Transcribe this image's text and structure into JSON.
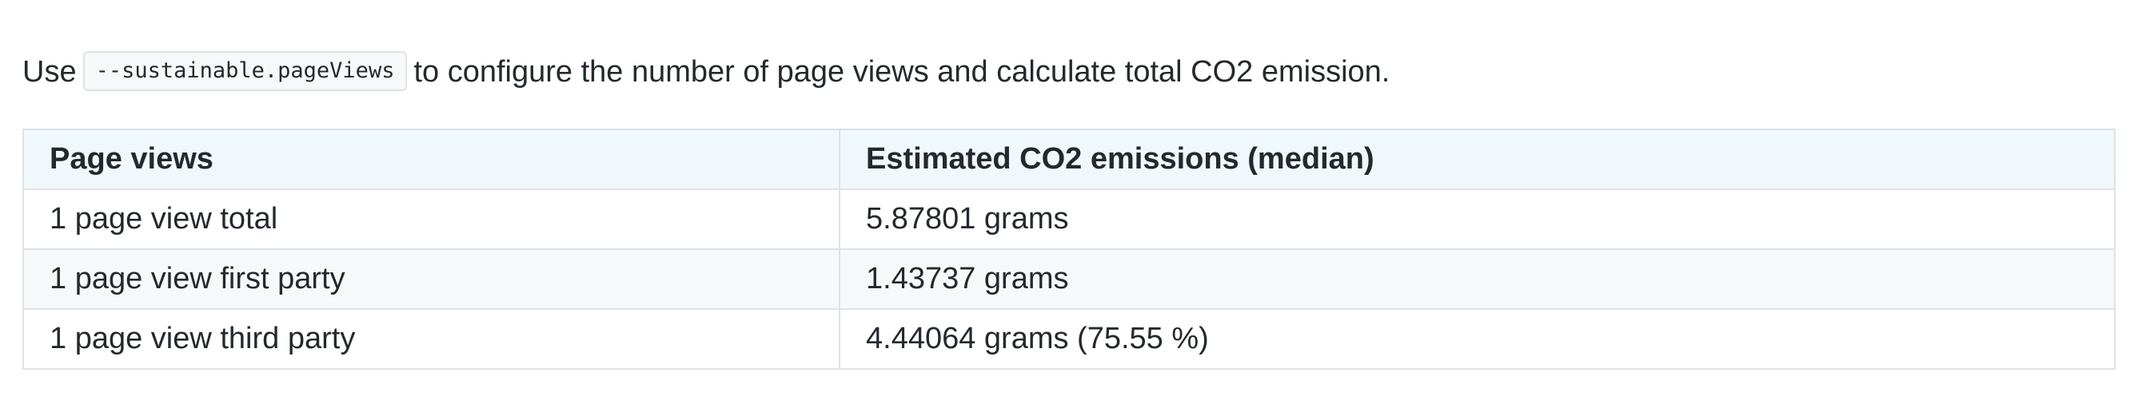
{
  "intro": {
    "before": "Use",
    "code": "--sustainable.pageViews",
    "after": "to configure the number of page views and calculate total CO2 emission."
  },
  "table": {
    "headers": [
      "Page views",
      "Estimated CO2 emissions (median)"
    ],
    "rows": [
      [
        "1 page view total",
        "5.87801 grams"
      ],
      [
        "1 page view first party",
        "1.43737 grams"
      ],
      [
        "1 page view third party",
        "4.44064 grams (75.55 %)"
      ]
    ]
  },
  "colors": {
    "text": "#24292e",
    "border": "#dfe2e5",
    "header_bg": "#f1f8fc",
    "stripe_bg": "#f6f8fa",
    "code_bg": "#f6f8fa"
  }
}
